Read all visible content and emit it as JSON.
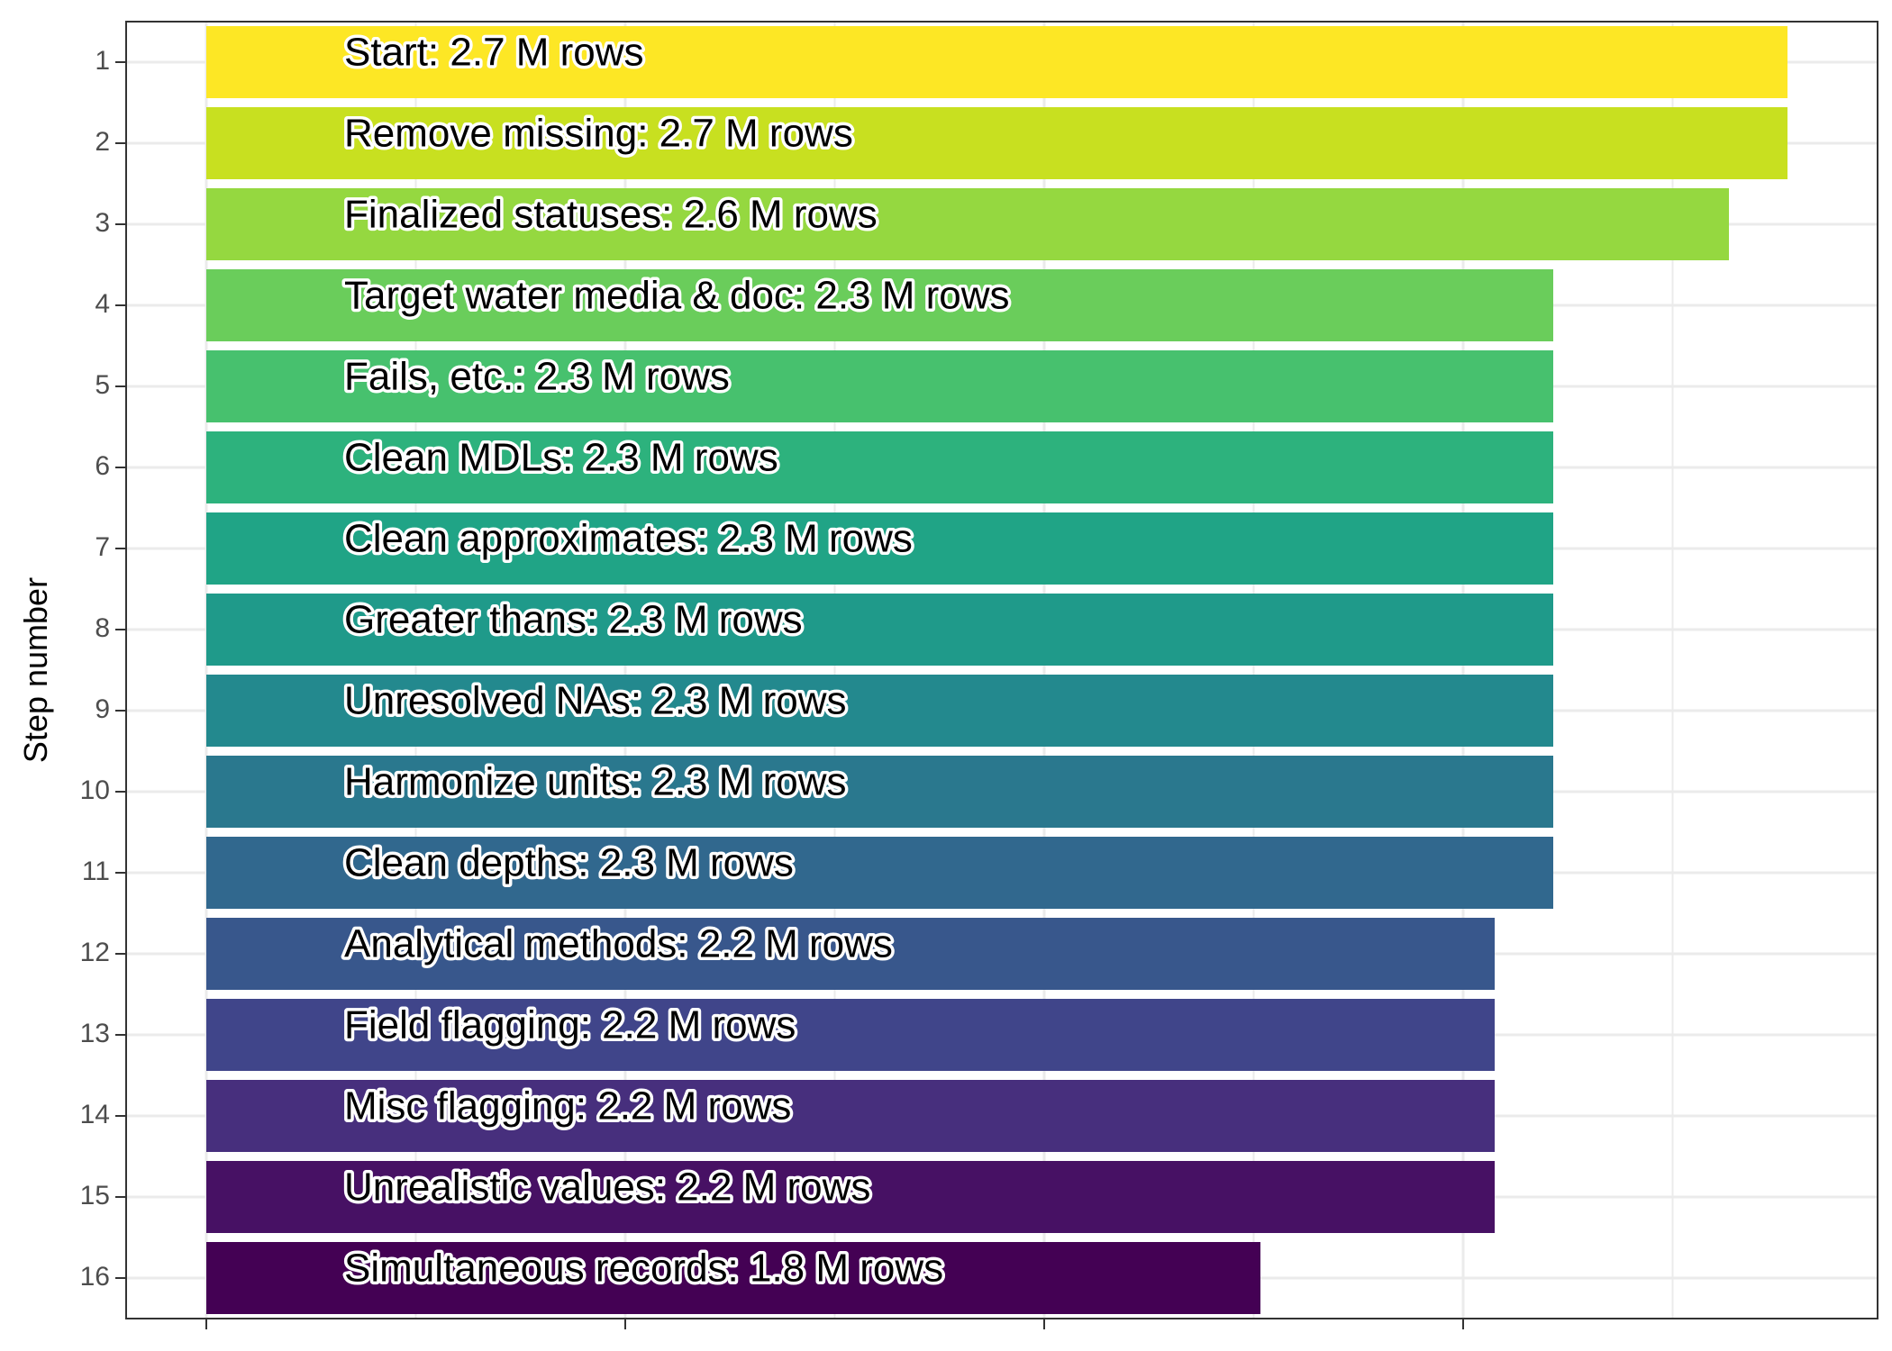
{
  "chart_data": {
    "type": "bar",
    "orientation": "horizontal",
    "title": "",
    "xlabel": "",
    "ylabel": "Step number",
    "categories": [
      "1",
      "2",
      "3",
      "4",
      "5",
      "6",
      "7",
      "8",
      "9",
      "10",
      "11",
      "12",
      "13",
      "14",
      "15",
      "16"
    ],
    "steps": [
      "Start",
      "Remove missing",
      "Finalized statuses",
      "Target water media & doc",
      "Fails, etc.",
      "Clean MDLs",
      "Clean approximates",
      "Greater thans",
      "Unresolved NAs",
      "Harmonize units",
      "Clean depths",
      "Analytical methods",
      "Field flagging",
      "Misc flagging",
      "Unrealistic values",
      "Simultaneous records"
    ],
    "labels": [
      "Start:  2.7 M rows",
      "Remove missing:  2.7 M rows",
      "Finalized statuses:  2.6 M rows",
      "Target water media & doc:  2.3 M rows",
      "Fails, etc.:  2.3 M rows",
      "Clean MDLs:  2.3 M rows",
      "Clean approximates:  2.3 M rows",
      "Greater thans:  2.3 M rows",
      "Unresolved NAs:  2.3 M rows",
      "Harmonize units:  2.3 M rows",
      "Clean depths:  2.3 M rows",
      "Analytical methods:  2.2 M rows",
      "Field flagging:  2.2 M rows",
      "Misc flagging:  2.2 M rows",
      "Unrealistic values:  2.2 M rows",
      "Simultaneous records:  1.8 M rows"
    ],
    "values": [
      2.7,
      2.7,
      2.6,
      2.3,
      2.3,
      2.3,
      2.3,
      2.3,
      2.3,
      2.3,
      2.3,
      2.2,
      2.2,
      2.2,
      2.2,
      1.8
    ],
    "colors": [
      "#FDE725",
      "#C8E020",
      "#95D840",
      "#6ACD5B",
      "#47C16E",
      "#2DB27D",
      "#20A486",
      "#1F9A8A",
      "#23898E",
      "#2A788E",
      "#31688E",
      "#38578C",
      "#40458A",
      "#472F7D",
      "#471164",
      "#440154"
    ],
    "ylim": [
      "1",
      "16"
    ],
    "grid": true,
    "legend": "none"
  }
}
